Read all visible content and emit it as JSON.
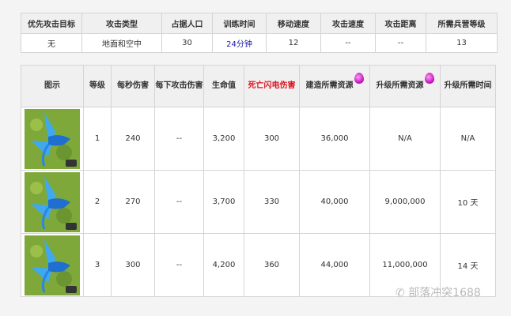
{
  "stats_table": {
    "headers": [
      "优先攻击目标",
      "攻击类型",
      "占据人口",
      "训练时间",
      "移动速度",
      "攻击速度",
      "攻击距离",
      "所需兵营等级"
    ],
    "values": [
      "无",
      "地面和空中",
      "30",
      "24分钟",
      "12",
      "--",
      "--",
      "13"
    ]
  },
  "level_table": {
    "headers": [
      "图示",
      "等级",
      "每秒伤害",
      "每下攻击伤害",
      "生命值",
      "死亡闪电伤害",
      "建造所需资源",
      "升级所需资源",
      "升级所需时间"
    ],
    "rows": [
      {
        "level": "1",
        "dps": "240",
        "per_hit": "--",
        "hp": "3,200",
        "death": "300",
        "build": "36,000",
        "upgrade": "N/A",
        "time": "N/A"
      },
      {
        "level": "2",
        "dps": "270",
        "per_hit": "--",
        "hp": "3,700",
        "death": "330",
        "build": "40,000",
        "upgrade": "9,000,000",
        "time": "10 天"
      },
      {
        "level": "3",
        "dps": "300",
        "per_hit": "--",
        "hp": "4,200",
        "death": "360",
        "build": "44,000",
        "upgrade": "11,000,000",
        "time": "14 天"
      }
    ],
    "resource_icon": "elixir-drop-icon",
    "accent_colors": {
      "death_header": "#e0141e",
      "training_time": "#1a1aa8"
    }
  },
  "watermark": "部落冲突1688"
}
